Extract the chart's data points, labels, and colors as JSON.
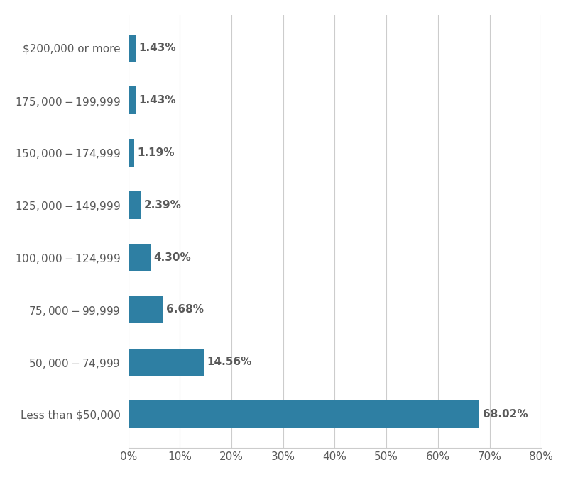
{
  "categories": [
    "Less than $50,000",
    "$50,000 - $74,999",
    "$75,000 - $99,999",
    "$100,000 - $124,999",
    "$125,000 - $149,999",
    "$150,000 - $174,999",
    "$175,000 - $199,999",
    "$200,000 or more"
  ],
  "values": [
    68.02,
    14.56,
    6.68,
    4.3,
    2.39,
    1.19,
    1.43,
    1.43
  ],
  "labels": [
    "68.02%",
    "14.56%",
    "6.68%",
    "4.30%",
    "2.39%",
    "1.19%",
    "1.43%",
    "1.43%"
  ],
  "bar_color": "#2e7fa3",
  "background_color": "#ffffff",
  "gridline_color": "#cccccc",
  "text_color": "#595959",
  "label_fontsize": 11,
  "tick_fontsize": 11,
  "xlim": [
    0,
    80
  ],
  "xticks": [
    0,
    10,
    20,
    30,
    40,
    50,
    60,
    70,
    80
  ],
  "xtick_labels": [
    "0%",
    "10%",
    "20%",
    "30%",
    "40%",
    "50%",
    "60%",
    "70%",
    "80%"
  ]
}
